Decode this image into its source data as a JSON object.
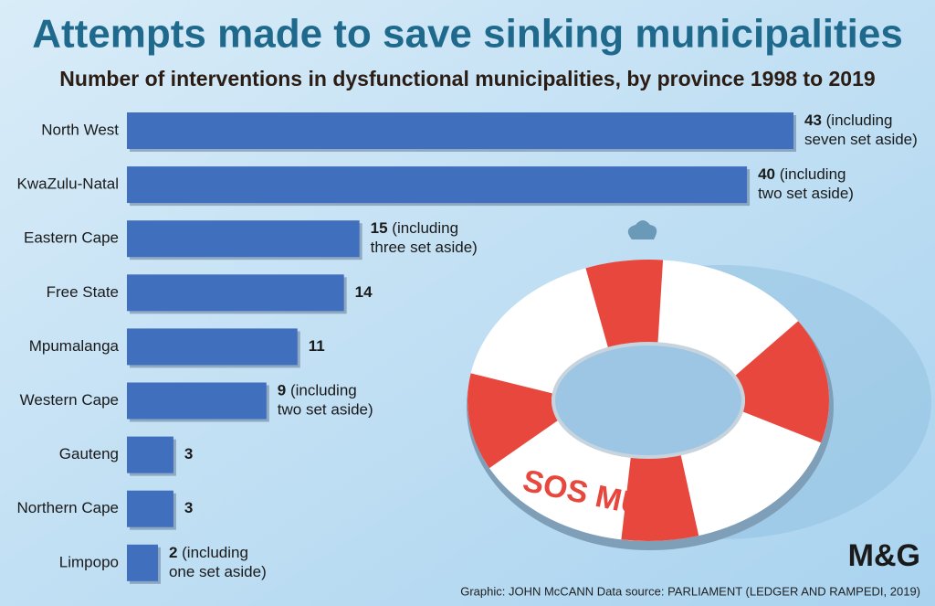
{
  "chart_data": {
    "type": "bar",
    "orientation": "horizontal",
    "title": "Attempts made to save sinking municipalities",
    "subtitle": "Number of interventions in dysfunctional municipalities, by province 1998 to 2019",
    "categories": [
      "North West",
      "KwaZulu-Natal",
      "Eastern Cape",
      "Free State",
      "Mpumalanga",
      "Western Cape",
      "Gauteng",
      "Northern Cape",
      "Limpopo"
    ],
    "values": [
      43,
      40,
      15,
      14,
      11,
      9,
      3,
      3,
      2
    ],
    "value_labels": [
      "43 (including seven set aside)",
      "40 (including two set aside)",
      "15 (including three set aside)",
      "14",
      "11",
      "9 (including two set aside)",
      "3",
      "3",
      "2 (including one set aside)"
    ],
    "color": "#3f6fbd",
    "source": "Graphic: JOHN McCANN  Data source: PARLIAMENT (LEDGER AND RAMPEDI, 2019)",
    "logo": "M&G",
    "illustration_text": "SOS MUNI"
  }
}
